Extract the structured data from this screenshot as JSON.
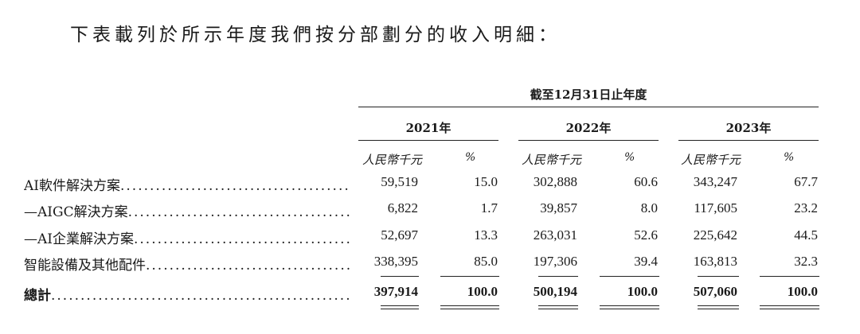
{
  "intro": "下表載列於所示年度我們按分部劃分的收入明細：",
  "period_header": "截至12月31日止年度",
  "years": [
    "2021年",
    "2022年",
    "2023年"
  ],
  "unit_label": "人民幣千元",
  "pct_label": "%",
  "rows": [
    {
      "label": "AI軟件解決方案",
      "values": [
        "59,519",
        "15.0",
        "302,888",
        "60.6",
        "343,247",
        "67.7"
      ]
    },
    {
      "label": "—AIGC解決方案",
      "values": [
        "6,822",
        "1.7",
        "39,857",
        "8.0",
        "117,605",
        "23.2"
      ]
    },
    {
      "label": "—AI企業解決方案",
      "values": [
        "52,697",
        "13.3",
        "263,031",
        "52.6",
        "225,642",
        "44.5"
      ]
    },
    {
      "label": "智能設備及其他配件",
      "values": [
        "338,395",
        "85.0",
        "197,306",
        "39.4",
        "163,813",
        "32.3"
      ]
    },
    {
      "label": "總計",
      "values": [
        "397,914",
        "100.0",
        "500,194",
        "100.0",
        "507,060",
        "100.0"
      ]
    }
  ]
}
